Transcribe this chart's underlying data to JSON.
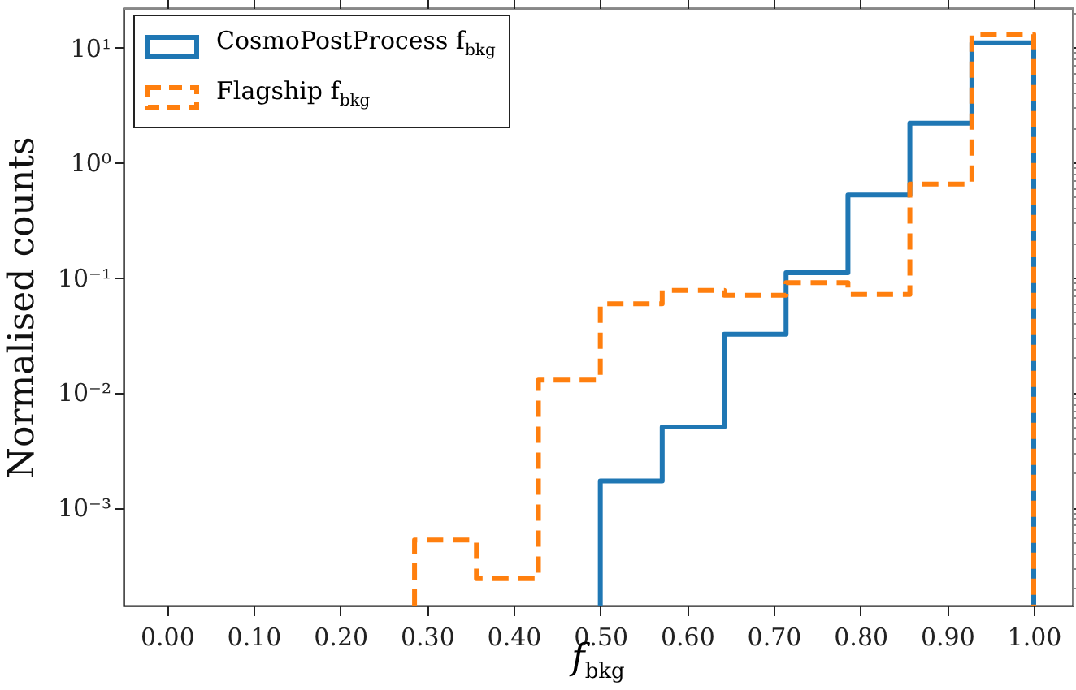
{
  "chart_data": {
    "type": "histogram",
    "xlabel": "f$_{bkg}$",
    "ylabel": "Normalised counts",
    "bins": [
      0.2857,
      0.3571,
      0.4286,
      0.5,
      0.5714,
      0.6429,
      0.7143,
      0.7857,
      0.8571,
      0.9286,
      1.0
    ],
    "series": [
      {
        "name": "CosmoPostProcess f$_{bkg}$",
        "color": "#1f77b4",
        "line_style": "solid",
        "bins": [
          0.5,
          0.5714,
          0.6429,
          0.7143,
          0.7857,
          0.8571,
          0.9286,
          1.0
        ],
        "values": [
          0.0017,
          0.005,
          0.032,
          0.11,
          0.52,
          2.2,
          11.0
        ]
      },
      {
        "name": "Flagship f$_{bkg}$",
        "color": "#ff7f0e",
        "line_style": "dashed",
        "values": [
          0.00052,
          0.00024,
          0.0128,
          0.059,
          0.077,
          0.07,
          0.09,
          0.071,
          0.65,
          13.0
        ]
      }
    ],
    "log": "y",
    "xlim": [
      -0.05,
      1.045
    ],
    "ylim": [
      0.00014,
      22
    ],
    "xticks": [
      {
        "value": 0,
        "label": "0.00"
      },
      {
        "value": 0.1,
        "label": "0.10"
      },
      {
        "value": 0.2,
        "label": "0.20"
      },
      {
        "value": 0.3,
        "label": "0.30"
      },
      {
        "value": 0.4,
        "label": "0.40"
      },
      {
        "value": 0.5,
        "label": "0.50"
      },
      {
        "value": 0.6,
        "label": "0.60"
      },
      {
        "value": 0.7,
        "label": "0.70"
      },
      {
        "value": 0.8,
        "label": "0.80"
      },
      {
        "value": 0.9,
        "label": "0.90"
      },
      {
        "value": 1,
        "label": "1.00"
      }
    ],
    "yticks": [
      {
        "value": 0.001,
        "label": "10⁻³"
      },
      {
        "value": 0.01,
        "label": "10⁻²"
      },
      {
        "value": 0.1,
        "label": "10⁻¹"
      },
      {
        "value": 1,
        "label": "10⁰"
      },
      {
        "value": 10,
        "label": "10¹"
      }
    ],
    "legend": "top left",
    "grid": false
  }
}
